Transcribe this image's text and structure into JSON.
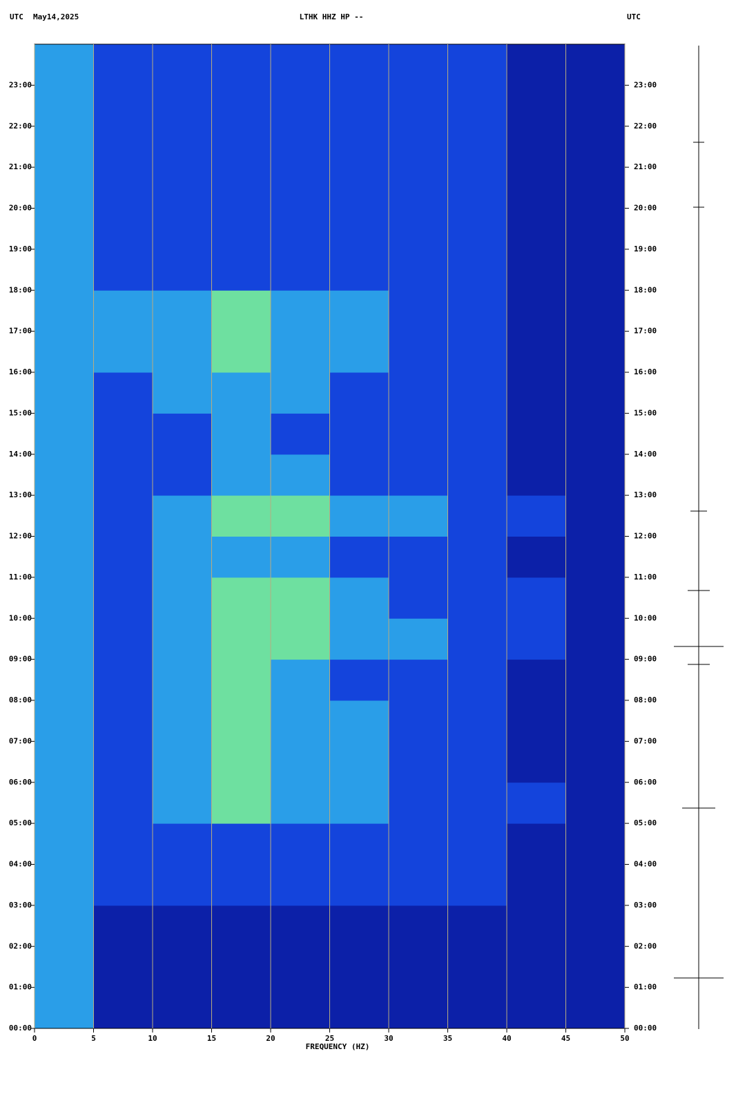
{
  "chart_data": {
    "type": "spectrogram",
    "title": "LTHK HHZ HP --",
    "left_header": "UTC",
    "date": "May14,2025",
    "right_header": "UTC",
    "xlabel": "FREQUENCY (HZ)",
    "xlim": [
      0,
      50
    ],
    "xticks": [
      0,
      5,
      10,
      15,
      20,
      25,
      30,
      35,
      40,
      45,
      50
    ],
    "ylim": [
      0,
      24
    ],
    "yticks": [
      {
        "value": 0,
        "label": "00:00"
      },
      {
        "value": 1,
        "label": "01:00"
      },
      {
        "value": 2,
        "label": "02:00"
      },
      {
        "value": 3,
        "label": "03:00"
      },
      {
        "value": 4,
        "label": "04:00"
      },
      {
        "value": 5,
        "label": "05:00"
      },
      {
        "value": 6,
        "label": "06:00"
      },
      {
        "value": 7,
        "label": "07:00"
      },
      {
        "value": 8,
        "label": "08:00"
      },
      {
        "value": 9,
        "label": "09:00"
      },
      {
        "value": 10,
        "label": "10:00"
      },
      {
        "value": 11,
        "label": "11:00"
      },
      {
        "value": 12,
        "label": "12:00"
      },
      {
        "value": 13,
        "label": "13:00"
      },
      {
        "value": 14,
        "label": "14:00"
      },
      {
        "value": 15,
        "label": "15:00"
      },
      {
        "value": 16,
        "label": "16:00"
      },
      {
        "value": 17,
        "label": "17:00"
      },
      {
        "value": 18,
        "label": "18:00"
      },
      {
        "value": 19,
        "label": "19:00"
      },
      {
        "value": 20,
        "label": "20:00"
      },
      {
        "value": 21,
        "label": "21:00"
      },
      {
        "value": 22,
        "label": "22:00"
      },
      {
        "value": 23,
        "label": "23:00"
      }
    ],
    "grid": true,
    "grid_color": "#b8ac80",
    "colors": [
      "#0c20a8",
      "#1444dc",
      "#2a9ee8",
      "#6ee0a0"
    ],
    "z": [
      [
        2,
        0,
        0,
        0,
        0,
        0,
        0,
        0,
        0,
        0
      ],
      [
        2,
        0,
        0,
        0,
        0,
        0,
        0,
        0,
        0,
        0
      ],
      [
        2,
        0,
        0,
        0,
        0,
        0,
        0,
        0,
        0,
        0
      ],
      [
        2,
        1,
        1,
        1,
        1,
        1,
        1,
        1,
        0,
        0
      ],
      [
        2,
        1,
        1,
        1,
        1,
        1,
        1,
        1,
        0,
        0
      ],
      [
        2,
        1,
        2,
        3,
        2,
        2,
        1,
        1,
        1,
        0
      ],
      [
        2,
        1,
        2,
        3,
        2,
        2,
        1,
        1,
        0,
        0
      ],
      [
        2,
        1,
        2,
        3,
        2,
        2,
        1,
        1,
        0,
        0
      ],
      [
        2,
        1,
        2,
        3,
        2,
        1,
        1,
        1,
        0,
        0
      ],
      [
        2,
        1,
        2,
        3,
        3,
        2,
        2,
        1,
        1,
        0
      ],
      [
        2,
        1,
        2,
        3,
        3,
        2,
        1,
        1,
        1,
        0
      ],
      [
        2,
        1,
        2,
        2,
        2,
        1,
        1,
        1,
        0,
        0
      ],
      [
        2,
        1,
        2,
        3,
        3,
        2,
        2,
        1,
        1,
        0
      ],
      [
        2,
        1,
        1,
        2,
        2,
        1,
        1,
        1,
        0,
        0
      ],
      [
        2,
        1,
        1,
        2,
        1,
        1,
        1,
        1,
        0,
        0
      ],
      [
        2,
        1,
        2,
        2,
        2,
        1,
        1,
        1,
        0,
        0
      ],
      [
        2,
        2,
        2,
        3,
        2,
        2,
        1,
        1,
        0,
        0
      ],
      [
        2,
        2,
        2,
        3,
        2,
        2,
        1,
        1,
        0,
        0
      ],
      [
        2,
        1,
        1,
        1,
        1,
        1,
        1,
        1,
        0,
        0
      ],
      [
        2,
        1,
        1,
        1,
        1,
        1,
        1,
        1,
        0,
        0
      ],
      [
        2,
        1,
        1,
        1,
        1,
        1,
        1,
        1,
        0,
        0
      ],
      [
        2,
        1,
        1,
        1,
        1,
        1,
        1,
        1,
        0,
        0
      ],
      [
        2,
        1,
        1,
        1,
        1,
        1,
        1,
        1,
        0,
        0
      ],
      [
        2,
        1,
        1,
        1,
        1,
        1,
        1,
        1,
        0,
        0
      ]
    ]
  }
}
